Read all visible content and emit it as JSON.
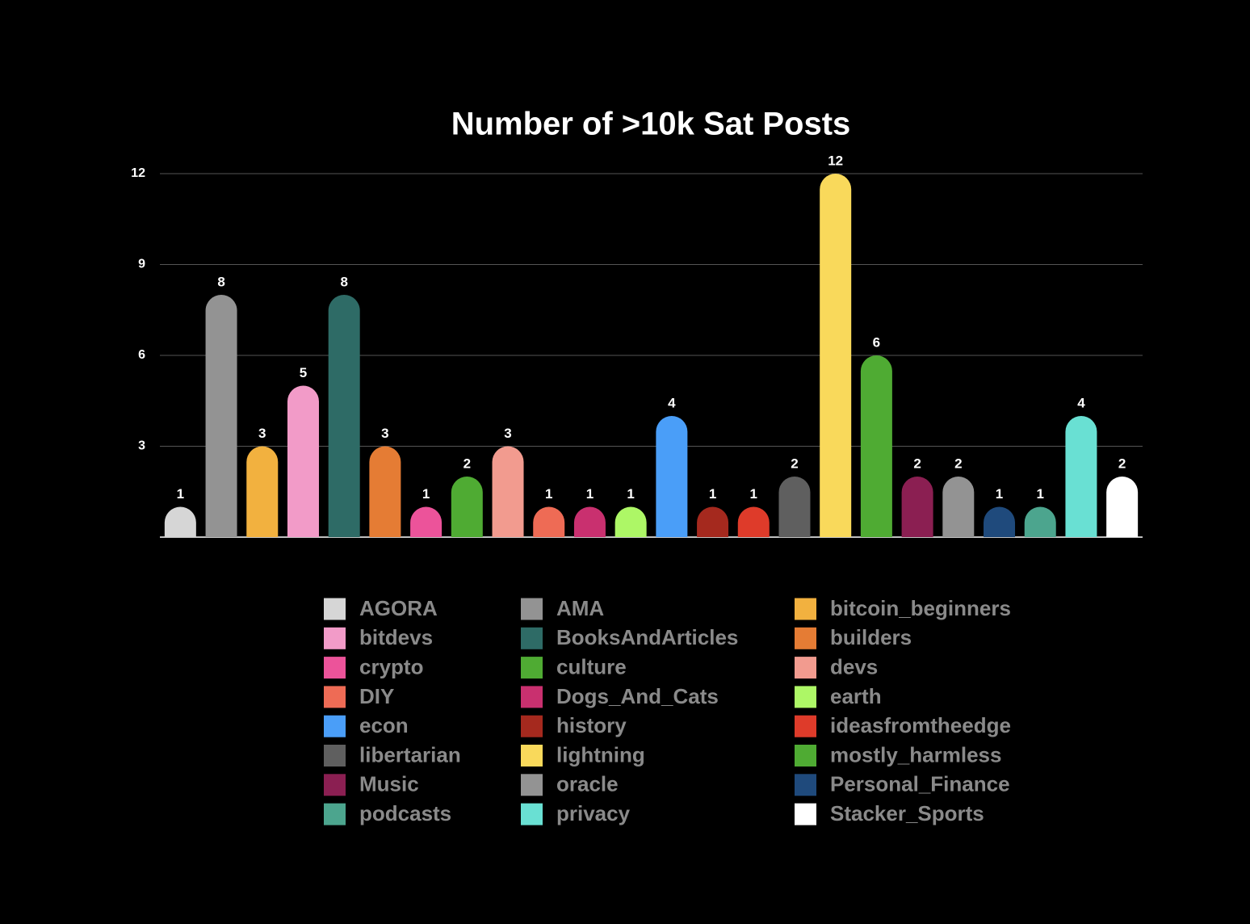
{
  "chart_data": {
    "type": "bar",
    "title": "Number of >10k Sat Posts",
    "categories": [
      "AGORA",
      "AMA",
      "bitcoin_beginners",
      "bitdevs",
      "BooksAndArticles",
      "builders",
      "crypto",
      "culture",
      "devs",
      "DIY",
      "Dogs_And_Cats",
      "earth",
      "econ",
      "history",
      "ideasfromtheedge",
      "libertarian",
      "lightning",
      "mostly_harmless",
      "Music",
      "oracle",
      "Personal_Finance",
      "podcasts",
      "privacy",
      "Stacker_Sports"
    ],
    "values": [
      1,
      8,
      3,
      5,
      8,
      3,
      1,
      2,
      3,
      1,
      1,
      1,
      4,
      1,
      1,
      2,
      12,
      6,
      2,
      2,
      1,
      1,
      4,
      2
    ],
    "colors": [
      "#d6d6d6",
      "#939393",
      "#f2b13f",
      "#f29bc8",
      "#2e6b66",
      "#e57c34",
      "#ec539a",
      "#4fab33",
      "#f29b8f",
      "#ee6b55",
      "#c9306f",
      "#adf766",
      "#4a9ef8",
      "#a5291e",
      "#de3b2a",
      "#5f5f5f",
      "#f9d95b",
      "#4fab33",
      "#8b1f52",
      "#939393",
      "#1f4a7c",
      "#4ca58e",
      "#69e0d3",
      "#ffffff"
    ],
    "ylim": [
      0,
      12
    ],
    "yticks": [
      3,
      6,
      9,
      12
    ],
    "grid": true
  }
}
